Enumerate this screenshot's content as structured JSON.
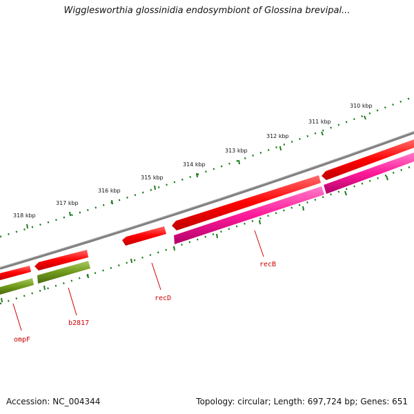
{
  "title": "Wigglesworthia glossinidia endosymbiont of Glossina brevipal...",
  "footer": {
    "accession": "Accession: NC_004344",
    "summary": "Topology: circular; Length: 697,724 bp; Genes: 651"
  },
  "scale": {
    "unit": "kbp",
    "labels": [
      "310 kbp",
      "311 kbp",
      "312 kbp",
      "313 kbp",
      "314 kbp",
      "315 kbp",
      "316 kbp",
      "317 kbp",
      "318 kbp"
    ]
  },
  "genes": [
    {
      "name": "recB",
      "strand": "plus-track",
      "color": "#ff1a9a"
    },
    {
      "name": "recD",
      "strand": "minus-track",
      "color": "#ff0000"
    },
    {
      "name": "b2817",
      "strand": "plus-track",
      "color": "#6f9a1a"
    },
    {
      "name": "ompF",
      "strand": "plus-track",
      "color": "#6f9a1a"
    }
  ],
  "colors": {
    "backbone": "#808080",
    "tick_green": "#1a7a1a",
    "label_red": "#cc0000",
    "cds_red": "#ff0000",
    "cds_pink": "#ff1a9a",
    "cds_olive": "#6f9a1a"
  }
}
